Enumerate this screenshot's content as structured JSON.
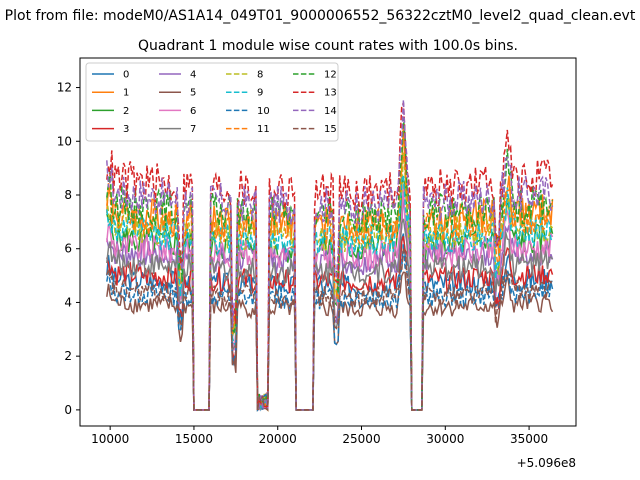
{
  "page": {
    "suptitle": "Plot from file: modeM0/AS1A14_049T01_9000006552_56322cztM0_level2_quad_clean.evt",
    "title": "Quadrant 1 module wise count rates with 100.0s bins."
  },
  "chart_data": {
    "type": "line",
    "title": "Quadrant 1 module wise count rates with 100.0s bins.",
    "xlabel": "",
    "ylabel": "",
    "x_offset_label": "+5.096e8",
    "xlim": [
      8200,
      37800
    ],
    "ylim": [
      -0.6,
      13.1
    ],
    "x_ticks": [
      10000,
      15000,
      20000,
      25000,
      30000,
      35000
    ],
    "y_ticks": [
      0,
      2,
      4,
      6,
      8,
      10,
      12
    ],
    "grid": false,
    "legend": {
      "placement": "top-left",
      "columns": 4
    },
    "series": [
      {
        "name": "0",
        "color": "#1f77b4",
        "dash": false,
        "base": 4.9
      },
      {
        "name": "1",
        "color": "#ff7f0e",
        "dash": false,
        "base": 7.4
      },
      {
        "name": "2",
        "color": "#2ca02c",
        "dash": false,
        "base": 6.4
      },
      {
        "name": "3",
        "color": "#d62728",
        "dash": false,
        "base": 5.1
      },
      {
        "name": "4",
        "color": "#9467bd",
        "dash": false,
        "base": 5.9
      },
      {
        "name": "5",
        "color": "#8c564b",
        "dash": false,
        "base": 4.0
      },
      {
        "name": "6",
        "color": "#e377c2",
        "dash": false,
        "base": 6.1
      },
      {
        "name": "7",
        "color": "#7f7f7f",
        "dash": false,
        "base": 5.5
      },
      {
        "name": "8",
        "color": "#bcbd22",
        "dash": true,
        "base": 6.9
      },
      {
        "name": "9",
        "color": "#17becf",
        "dash": true,
        "base": 6.7
      },
      {
        "name": "10",
        "color": "#1f77b4",
        "dash": true,
        "base": 4.4
      },
      {
        "name": "11",
        "color": "#ff7f0e",
        "dash": true,
        "base": 7.2
      },
      {
        "name": "12",
        "color": "#2ca02c",
        "dash": true,
        "base": 7.7
      },
      {
        "name": "13",
        "color": "#d62728",
        "dash": true,
        "base": 8.6
      },
      {
        "name": "14",
        "color": "#9467bd",
        "dash": true,
        "base": 8.1
      },
      {
        "name": "15",
        "color": "#8c564b",
        "dash": true,
        "base": 4.5
      }
    ],
    "time_profile": {
      "x_start": 9800,
      "x_end": 36400,
      "step": 100,
      "gaps": [
        [
          15000,
          15900
        ],
        [
          18800,
          19400
        ],
        [
          21100,
          22100
        ],
        [
          28000,
          28600
        ]
      ],
      "dips": [
        [
          14200,
          0.72
        ],
        [
          17400,
          0.45
        ],
        [
          23500,
          0.68
        ],
        [
          33100,
          0.82
        ]
      ],
      "peaks": [
        [
          27500,
          1.42
        ],
        [
          33700,
          1.2
        ],
        [
          9900,
          1.1
        ]
      ]
    }
  }
}
